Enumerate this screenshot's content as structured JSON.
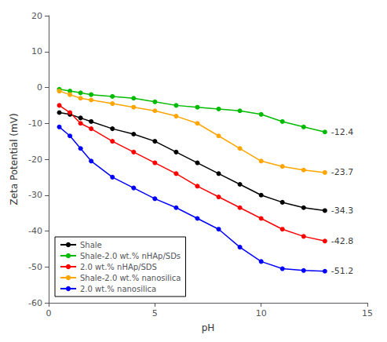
{
  "chart_data": {
    "type": "line",
    "xlabel": "pH",
    "ylabel": "Zeta Potential (mV)",
    "x": [
      0.5,
      1.0,
      1.5,
      2.0,
      3.0,
      4.0,
      5.0,
      6.0,
      7.0,
      8.0,
      9.0,
      10.0,
      11.0,
      12.0,
      13.0
    ],
    "series": [
      {
        "name": "Shale",
        "color": "#000000",
        "marker": "circle",
        "values": [
          -7.0,
          -7.5,
          -8.5,
          -9.5,
          -11.5,
          -13.0,
          -15.0,
          -18.0,
          -21.0,
          -24.0,
          -27.0,
          -30.0,
          -32.0,
          -33.5,
          -34.3
        ]
      },
      {
        "name": "Shale-2.0 wt.% nHAp/SDs",
        "color": "#00bb00",
        "marker": "circle",
        "values": [
          -0.5,
          -1.0,
          -1.5,
          -2.0,
          -2.5,
          -3.0,
          -4.0,
          -5.0,
          -5.5,
          -6.0,
          -6.5,
          -7.5,
          -9.5,
          -11.0,
          -12.4
        ]
      },
      {
        "name": "2.0 wt.% nHAp/SDS",
        "color": "#ff0000",
        "marker": "circle",
        "values": [
          -5.0,
          -7.0,
          -10.0,
          -11.5,
          -15.0,
          -18.0,
          -21.0,
          -24.0,
          -27.5,
          -30.5,
          -33.5,
          -36.5,
          -39.5,
          -41.5,
          -42.8
        ]
      },
      {
        "name": "Shale-2.0 wt.% nanosilica",
        "color": "#ffa500",
        "marker": "circle",
        "values": [
          -1.0,
          -2.0,
          -3.0,
          -3.5,
          -4.5,
          -5.5,
          -6.5,
          -8.0,
          -10.0,
          -13.5,
          -17.0,
          -20.5,
          -22.0,
          -23.0,
          -23.7
        ]
      },
      {
        "name": "2.0 wt.% nanosilica",
        "color": "#0000ff",
        "marker": "circle",
        "values": [
          -11.0,
          -13.5,
          -17.0,
          -20.5,
          -25.0,
          -28.0,
          -31.0,
          -33.5,
          -36.5,
          -39.5,
          -44.5,
          -48.5,
          -50.5,
          -51.0,
          -51.2
        ]
      }
    ],
    "annotations": [
      {
        "text": "-12.4",
        "x": 13.0,
        "y": -12.4
      },
      {
        "text": "-23.7",
        "x": 13.0,
        "y": -23.7
      },
      {
        "text": "-34.3",
        "x": 13.0,
        "y": -34.3
      },
      {
        "text": "-42.8",
        "x": 13.0,
        "y": -42.8
      },
      {
        "text": "-51.2",
        "x": 13.0,
        "y": -51.2
      }
    ],
    "xlim": [
      0,
      15
    ],
    "ylim": [
      -60,
      20
    ],
    "xticks": [
      0,
      5,
      10,
      15
    ],
    "yticks": [
      -60,
      -50,
      -40,
      -30,
      -20,
      -10,
      0,
      10,
      20
    ],
    "grid": false,
    "legend": "lower left"
  }
}
